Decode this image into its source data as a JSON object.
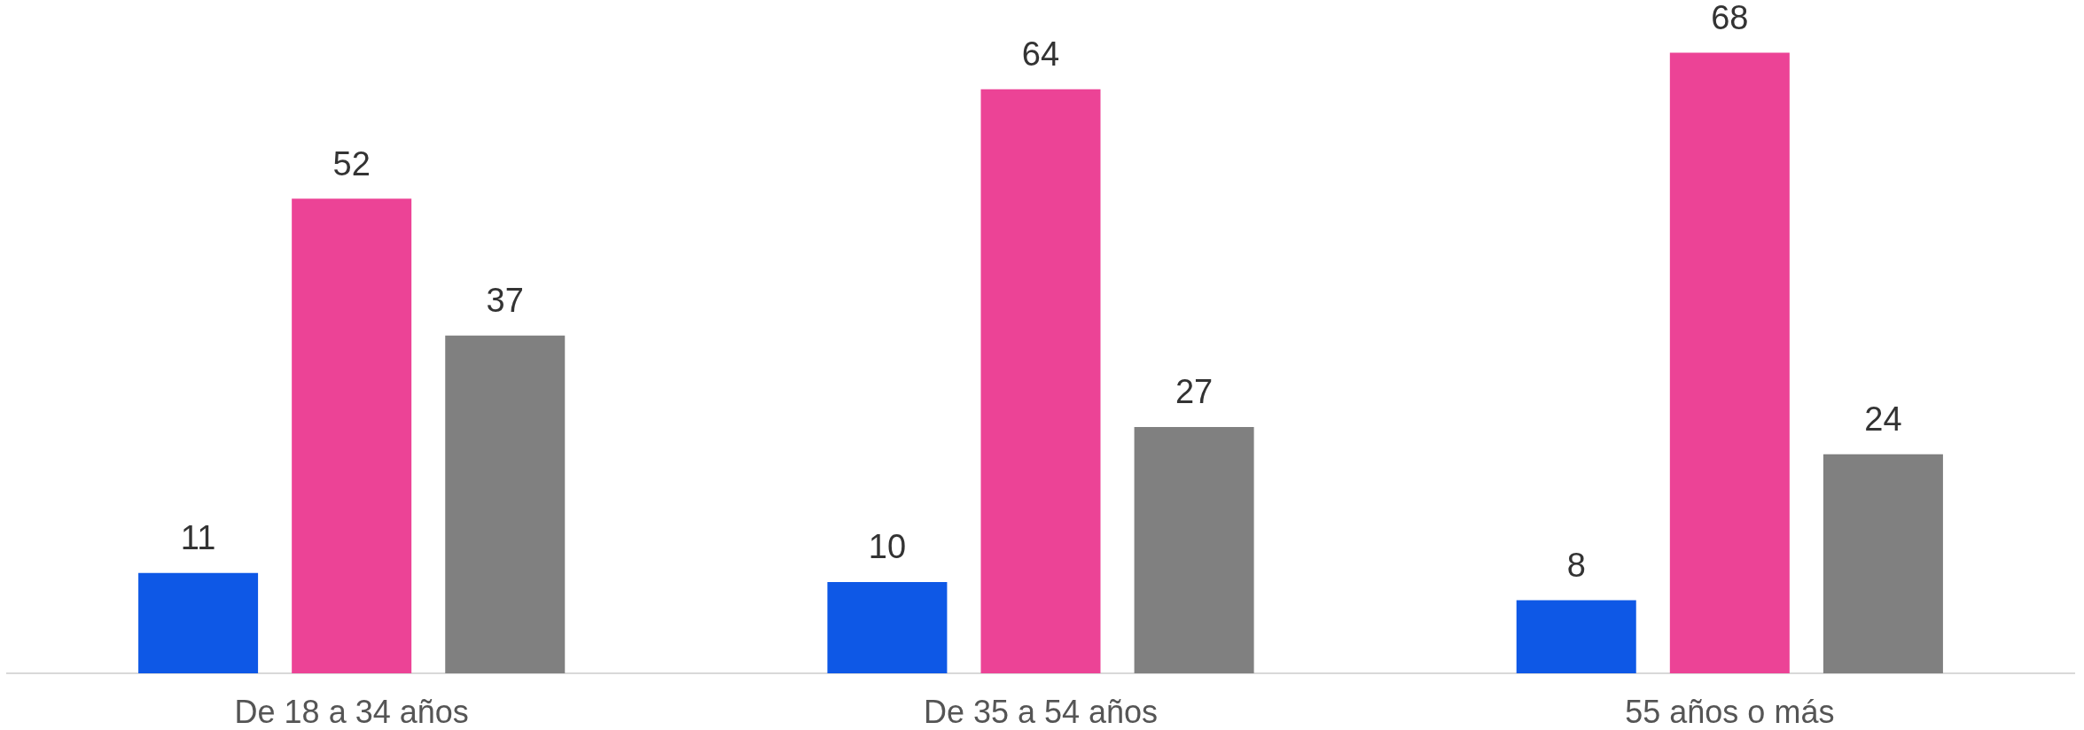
{
  "chart_data": {
    "type": "bar",
    "categories": [
      "De 18 a 34 años",
      "De 35 a 54 años",
      "55 años o más"
    ],
    "series": [
      {
        "color": "#0e58e6",
        "values": [
          11,
          10,
          8
        ]
      },
      {
        "color": "#ec4396",
        "values": [
          52,
          64,
          68
        ]
      },
      {
        "color": "#808080",
        "values": [
          37,
          27,
          24
        ]
      }
    ],
    "data_labels": true,
    "tick_labels": "x",
    "grid": false,
    "legend": false
  }
}
